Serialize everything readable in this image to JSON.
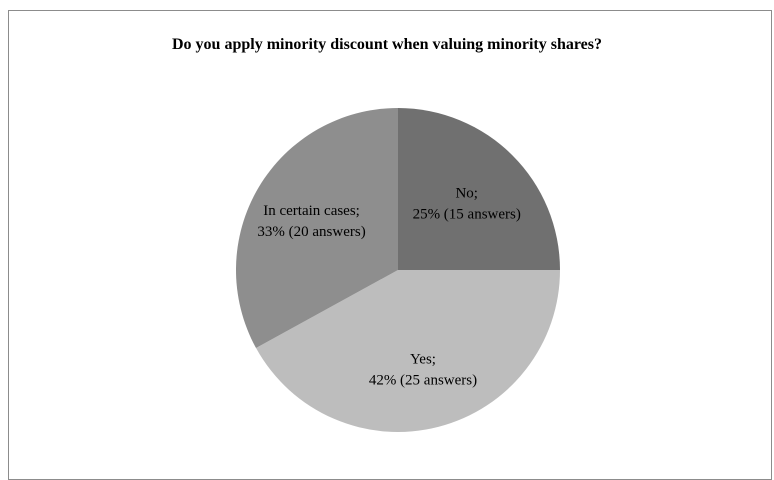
{
  "chart_data": {
    "type": "pie",
    "title": "Do you apply minority discount when valuing minority shares?",
    "slices": [
      {
        "label": "No;",
        "detail": "25% (15 answers)",
        "value": 25,
        "color": "#707070"
      },
      {
        "label": "Yes;",
        "detail": "42% (25 answers)",
        "value": 42,
        "color": "#bdbdbd"
      },
      {
        "label": "In certain cases;",
        "detail": "33% (20 answers)",
        "value": 33,
        "color": "#8e8e8e"
      }
    ],
    "legend": "none",
    "data_labels": "inside"
  }
}
